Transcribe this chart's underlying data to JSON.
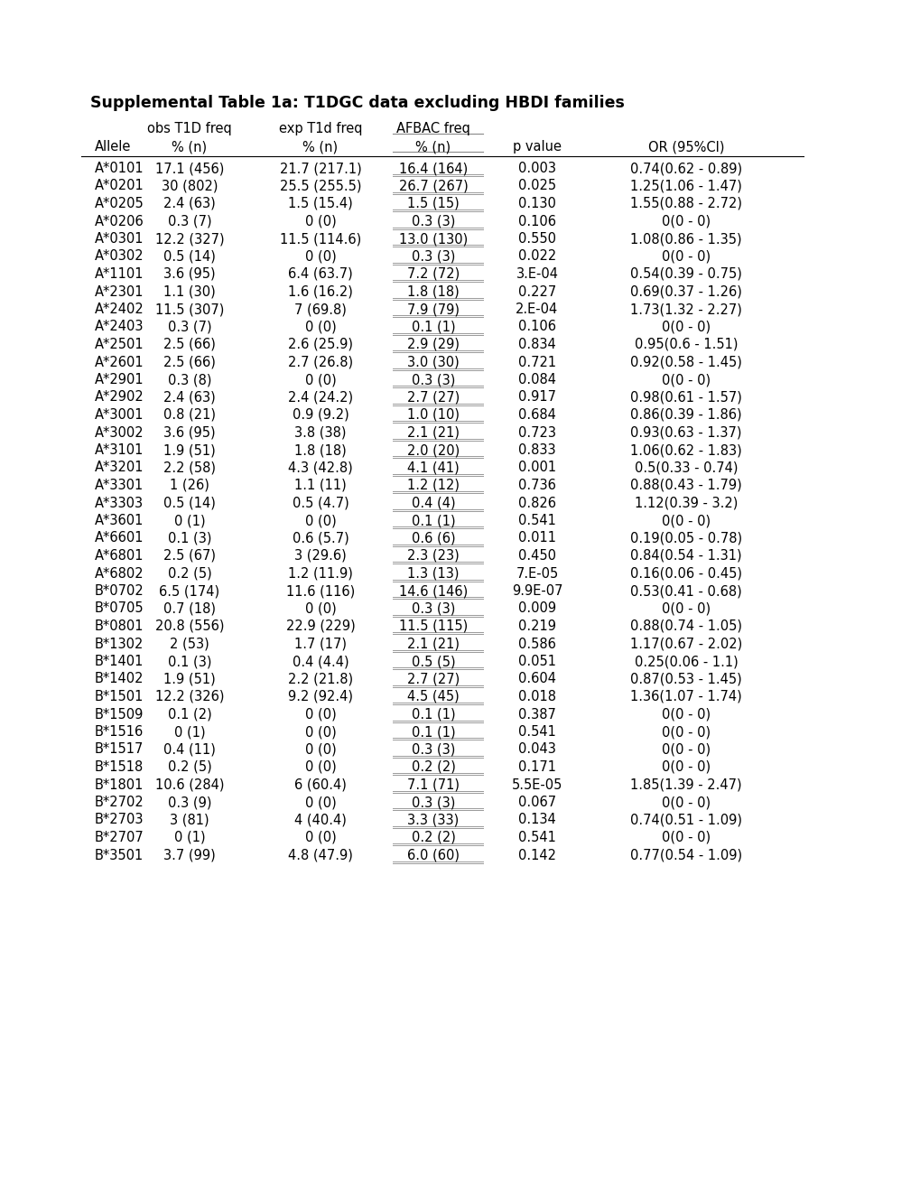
{
  "title": "Supplemental Table 1a: T1DGC data excluding HBDI families",
  "rows": [
    [
      "A*0101",
      "17.1 (456)",
      "21.7 (217.1)",
      "16.4 (164)",
      "0.003",
      "0.74(0.62 - 0.89)"
    ],
    [
      "A*0201",
      "30 (802)",
      "25.5 (255.5)",
      "26.7 (267)",
      "0.025",
      "1.25(1.06 - 1.47)"
    ],
    [
      "A*0205",
      "2.4 (63)",
      "1.5 (15.4)",
      "1.5 (15)",
      "0.130",
      "1.55(0.88 - 2.72)"
    ],
    [
      "A*0206",
      "0.3 (7)",
      "0 (0)",
      "0.3 (3)",
      "0.106",
      "0(0 - 0)"
    ],
    [
      "A*0301",
      "12.2 (327)",
      "11.5 (114.6)",
      "13.0 (130)",
      "0.550",
      "1.08(0.86 - 1.35)"
    ],
    [
      "A*0302",
      "0.5 (14)",
      "0 (0)",
      "0.3 (3)",
      "0.022",
      "0(0 - 0)"
    ],
    [
      "A*1101",
      "3.6 (95)",
      "6.4 (63.7)",
      "7.2 (72)",
      "3.E-04",
      "0.54(0.39 - 0.75)"
    ],
    [
      "A*2301",
      "1.1 (30)",
      "1.6 (16.2)",
      "1.8 (18)",
      "0.227",
      "0.69(0.37 - 1.26)"
    ],
    [
      "A*2402",
      "11.5 (307)",
      "7 (69.8)",
      "7.9 (79)",
      "2.E-04",
      "1.73(1.32 - 2.27)"
    ],
    [
      "A*2403",
      "0.3 (7)",
      "0 (0)",
      "0.1 (1)",
      "0.106",
      "0(0 - 0)"
    ],
    [
      "A*2501",
      "2.5 (66)",
      "2.6 (25.9)",
      "2.9 (29)",
      "0.834",
      "0.95(0.6 - 1.51)"
    ],
    [
      "A*2601",
      "2.5 (66)",
      "2.7 (26.8)",
      "3.0 (30)",
      "0.721",
      "0.92(0.58 - 1.45)"
    ],
    [
      "A*2901",
      "0.3 (8)",
      "0 (0)",
      "0.3 (3)",
      "0.084",
      "0(0 - 0)"
    ],
    [
      "A*2902",
      "2.4 (63)",
      "2.4 (24.2)",
      "2.7 (27)",
      "0.917",
      "0.98(0.61 - 1.57)"
    ],
    [
      "A*3001",
      "0.8 (21)",
      "0.9 (9.2)",
      "1.0 (10)",
      "0.684",
      "0.86(0.39 - 1.86)"
    ],
    [
      "A*3002",
      "3.6 (95)",
      "3.8 (38)",
      "2.1 (21)",
      "0.723",
      "0.93(0.63 - 1.37)"
    ],
    [
      "A*3101",
      "1.9 (51)",
      "1.8 (18)",
      "2.0 (20)",
      "0.833",
      "1.06(0.62 - 1.83)"
    ],
    [
      "A*3201",
      "2.2 (58)",
      "4.3 (42.8)",
      "4.1 (41)",
      "0.001",
      "0.5(0.33 - 0.74)"
    ],
    [
      "A*3301",
      "1 (26)",
      "1.1 (11)",
      "1.2 (12)",
      "0.736",
      "0.88(0.43 - 1.79)"
    ],
    [
      "A*3303",
      "0.5 (14)",
      "0.5 (4.7)",
      "0.4 (4)",
      "0.826",
      "1.12(0.39 - 3.2)"
    ],
    [
      "A*3601",
      "0 (1)",
      "0 (0)",
      "0.1 (1)",
      "0.541",
      "0(0 - 0)"
    ],
    [
      "A*6601",
      "0.1 (3)",
      "0.6 (5.7)",
      "0.6 (6)",
      "0.011",
      "0.19(0.05 - 0.78)"
    ],
    [
      "A*6801",
      "2.5 (67)",
      "3 (29.6)",
      "2.3 (23)",
      "0.450",
      "0.84(0.54 - 1.31)"
    ],
    [
      "A*6802",
      "0.2 (5)",
      "1.2 (11.9)",
      "1.3 (13)",
      "7.E-05",
      "0.16(0.06 - 0.45)"
    ],
    [
      "B*0702",
      "6.5 (174)",
      "11.6 (116)",
      "14.6 (146)",
      "9.9E-07",
      "0.53(0.41 - 0.68)"
    ],
    [
      "B*0705",
      "0.7 (18)",
      "0 (0)",
      "0.3 (3)",
      "0.009",
      "0(0 - 0)"
    ],
    [
      "B*0801",
      "20.8 (556)",
      "22.9 (229)",
      "11.5 (115)",
      "0.219",
      "0.88(0.74 - 1.05)"
    ],
    [
      "B*1302",
      "2 (53)",
      "1.7 (17)",
      "2.1 (21)",
      "0.586",
      "1.17(0.67 - 2.02)"
    ],
    [
      "B*1401",
      "0.1 (3)",
      "0.4 (4.4)",
      "0.5 (5)",
      "0.051",
      "0.25(0.06 - 1.1)"
    ],
    [
      "B*1402",
      "1.9 (51)",
      "2.2 (21.8)",
      "2.7 (27)",
      "0.604",
      "0.87(0.53 - 1.45)"
    ],
    [
      "B*1501",
      "12.2 (326)",
      "9.2 (92.4)",
      "4.5 (45)",
      "0.018",
      "1.36(1.07 - 1.74)"
    ],
    [
      "B*1509",
      "0.1 (2)",
      "0 (0)",
      "0.1 (1)",
      "0.387",
      "0(0 - 0)"
    ],
    [
      "B*1516",
      "0 (1)",
      "0 (0)",
      "0.1 (1)",
      "0.541",
      "0(0 - 0)"
    ],
    [
      "B*1517",
      "0.4 (11)",
      "0 (0)",
      "0.3 (3)",
      "0.043",
      "0(0 - 0)"
    ],
    [
      "B*1518",
      "0.2 (5)",
      "0 (0)",
      "0.2 (2)",
      "0.171",
      "0(0 - 0)"
    ],
    [
      "B*1801",
      "10.6 (284)",
      "6 (60.4)",
      "7.1 (71)",
      "5.5E-05",
      "1.85(1.39 - 2.47)"
    ],
    [
      "B*2702",
      "0.3 (9)",
      "0 (0)",
      "0.3 (3)",
      "0.067",
      "0(0 - 0)"
    ],
    [
      "B*2703",
      "3 (81)",
      "4 (40.4)",
      "3.3 (33)",
      "0.134",
      "0.74(0.51 - 1.09)"
    ],
    [
      "B*2707",
      "0 (1)",
      "0 (0)",
      "0.2 (2)",
      "0.541",
      "0(0 - 0)"
    ],
    [
      "B*3501",
      "3.7 (99)",
      "4.8 (47.9)",
      "6.0 (60)",
      "0.142",
      "0.77(0.54 - 1.09)"
    ]
  ],
  "background_color": "#ffffff",
  "text_color": "#000000",
  "title_fontsize": 12.5,
  "header_fontsize": 10.5,
  "data_fontsize": 10.5
}
